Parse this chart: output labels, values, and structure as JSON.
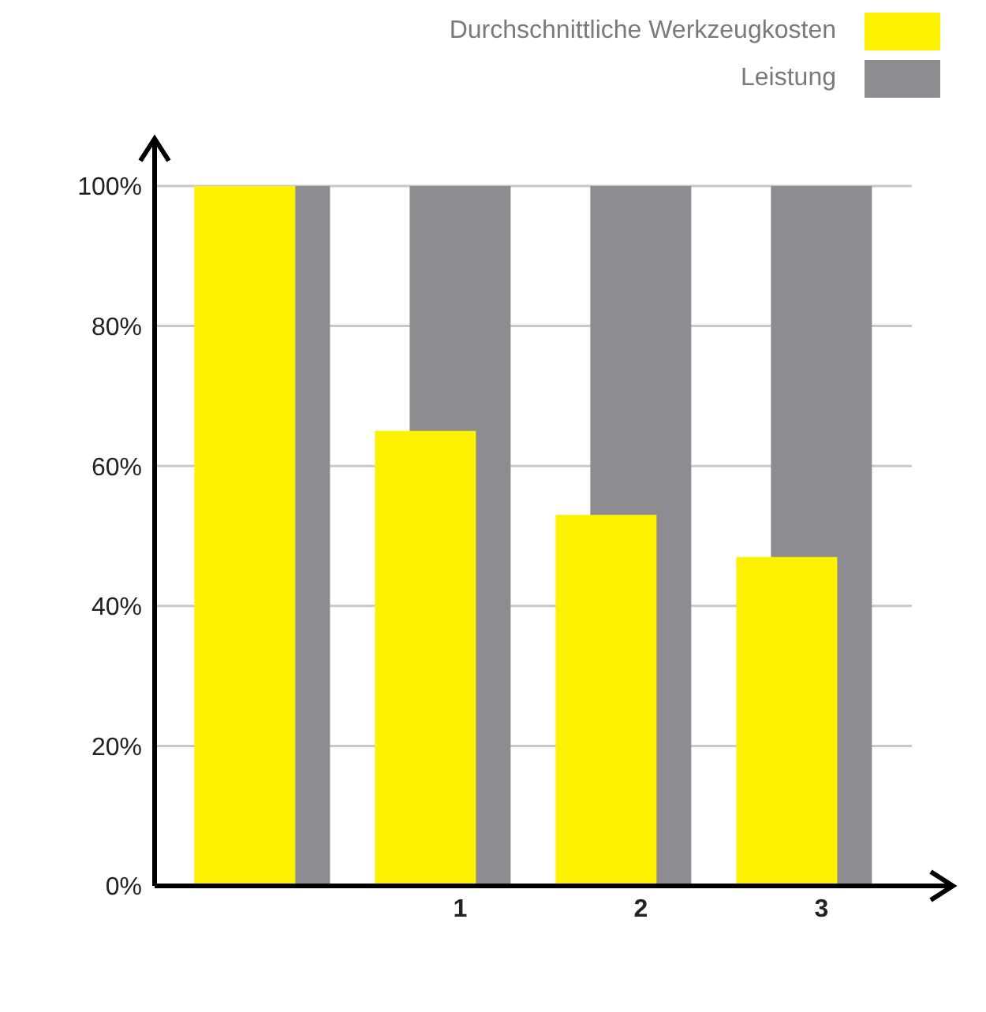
{
  "chart_data": {
    "type": "bar",
    "categories": [
      null,
      "1",
      "2",
      "3"
    ],
    "series": [
      {
        "name": "Durchschnittliche Werkzeugkosten",
        "color": "#fff200",
        "values": [
          100,
          65,
          53,
          47
        ]
      },
      {
        "name": "Leistung",
        "color": "#8c8c91",
        "values": [
          100,
          100,
          100,
          100
        ]
      }
    ],
    "ylim": [
      0,
      100
    ],
    "yticks": [
      {
        "value": 0,
        "label": "0%"
      },
      {
        "value": 20,
        "label": "20%"
      },
      {
        "value": 40,
        "label": "40%"
      },
      {
        "value": 60,
        "label": "60%"
      },
      {
        "value": 80,
        "label": "80%"
      },
      {
        "value": 100,
        "label": "100%"
      }
    ],
    "grid": "y",
    "legend": "top right"
  }
}
